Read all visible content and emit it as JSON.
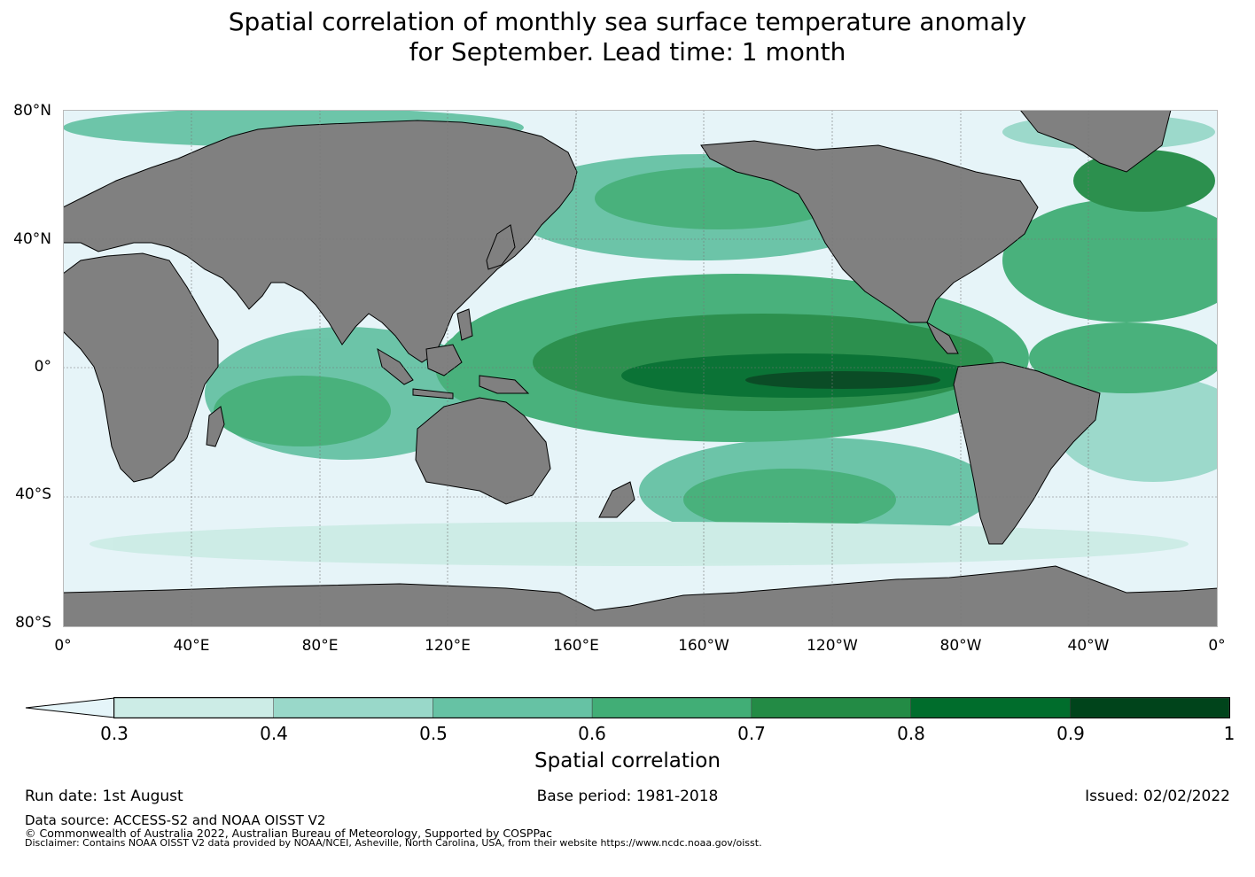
{
  "title": {
    "line1": "Spatial correlation of monthly sea surface temperature anomaly",
    "line2": "for September. Lead time: 1 month"
  },
  "map": {
    "lat_labels": [
      "80°N",
      "40°N",
      "0°",
      "40°S",
      "80°S"
    ],
    "lon_labels": [
      "0°",
      "40°E",
      "80°E",
      "120°E",
      "160°E",
      "160°W",
      "120°W",
      "80°W",
      "40°W",
      "0°"
    ],
    "colors": {
      "land": "#808080",
      "ocean_low": "#e6f4f8",
      "grid": "#777777"
    }
  },
  "colorbar": {
    "ticks": [
      "0.3",
      "0.4",
      "0.5",
      "0.6",
      "0.7",
      "0.8",
      "0.9",
      "1"
    ],
    "colors": [
      "#e5f5f9",
      "#ccece6",
      "#99d8c9",
      "#66c2a4",
      "#41ae76",
      "#238b45",
      "#006d2c",
      "#00441b"
    ],
    "label": "Spatial correlation"
  },
  "footer": {
    "run_date": "Run date: 1st August",
    "base_period": "Base period: 1981-2018",
    "issued": "Issued: 02/02/2022",
    "data_source": "Data source: ACCESS-S2 and NOAA OISST V2",
    "copyright": "© Commonwealth of Australia 2022, Australian Bureau of Meteorology, Supported by COSPPac",
    "disclaimer": "Disclaimer: Contains NOAA OISST V2 data provided by NOAA/NCEI, Asheville, North Carolina, USA, from their website https://www.ncdc.noaa.gov/oisst."
  }
}
